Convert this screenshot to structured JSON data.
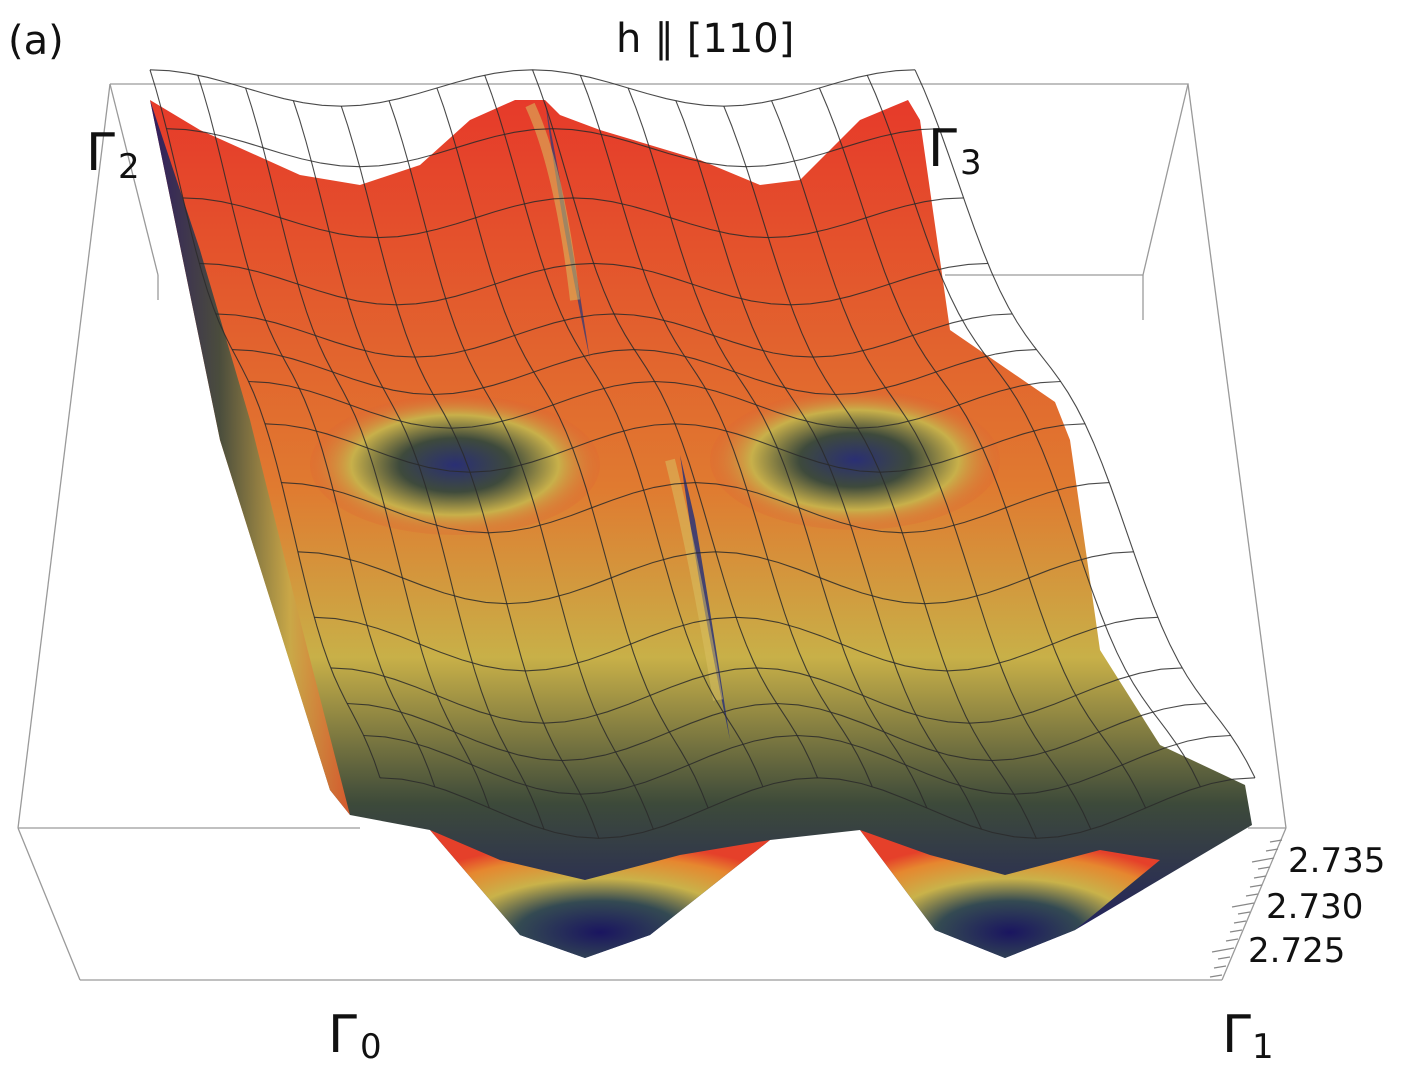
{
  "panel_label": "(a)",
  "title": "h ∥ [110]",
  "corners": {
    "g0": {
      "symbol": "Γ",
      "sub": "0"
    },
    "g1": {
      "symbol": "Γ",
      "sub": "1"
    },
    "g2": {
      "symbol": "Γ",
      "sub": "2"
    },
    "g3": {
      "symbol": "Γ",
      "sub": "3"
    }
  },
  "chart_data": {
    "type": "surface3d",
    "title": "h ∥ [110]",
    "xlabel": "",
    "ylabel": "",
    "zlabel": "",
    "z_ticks": [
      2.735,
      2.73,
      2.725
    ],
    "z_tick_labels": [
      "2.735",
      "2.730",
      "2.725"
    ],
    "zlim": [
      2.722,
      2.737
    ],
    "x_range_label": [
      "Γ0",
      "Γ1"
    ],
    "y_range_label": [
      "Γ0",
      "Γ2"
    ],
    "colormap": [
      "#1b1560",
      "#2f3d78",
      "#4a4a34",
      "#c7b64a",
      "#e8d060",
      "#e88a3a",
      "#e8452c",
      "#e02020"
    ],
    "surface_description_values": {
      "max_z": 2.736,
      "min_z": 2.723
    },
    "grid": true
  }
}
